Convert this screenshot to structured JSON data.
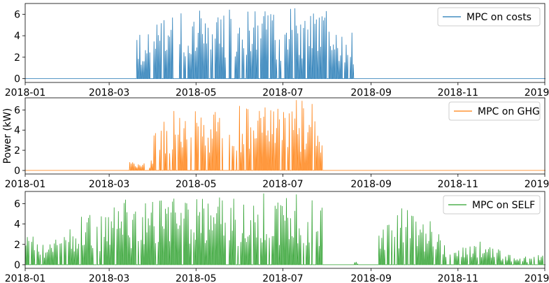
{
  "chart_data": [
    {
      "type": "line",
      "series": [
        {
          "name": "MPC on costs",
          "color": "#1f77b4"
        }
      ],
      "xlim": [
        "2018-01-01",
        "2019-01-01"
      ],
      "ylim": [
        -0.35,
        7
      ],
      "yticks": [
        0,
        2,
        4,
        6
      ],
      "xticks": [
        "2018-01",
        "2018-03",
        "2018-05",
        "2018-07",
        "2018-09",
        "2018-11",
        "2019-01"
      ],
      "ylabel": "",
      "legend": "top-right",
      "active_periods": [
        {
          "start": "2018-03-20",
          "end": "2018-04-01",
          "peak": 4.2
        },
        {
          "start": "2018-04-01",
          "end": "2018-04-15",
          "peak": 6.0
        },
        {
          "start": "2018-04-15",
          "end": "2018-05-15",
          "peak": 6.4
        },
        {
          "start": "2018-05-15",
          "end": "2018-07-15",
          "peak": 6.6
        },
        {
          "start": "2018-07-15",
          "end": "2018-08-01",
          "peak": 6.4
        },
        {
          "start": "2018-08-01",
          "end": "2018-08-15",
          "peak": 4.5
        },
        {
          "start": "2018-08-15",
          "end": "2018-08-20",
          "peak": 4.6
        }
      ]
    },
    {
      "type": "line",
      "series": [
        {
          "name": "MPC on GHG",
          "color": "#ff7f0e"
        }
      ],
      "xlim": [
        "2018-01-01",
        "2019-01-01"
      ],
      "ylim": [
        -0.35,
        7.2
      ],
      "yticks": [
        0,
        2,
        4,
        6
      ],
      "xticks": [
        "2018-01",
        "2018-03",
        "2018-05",
        "2018-07",
        "2018-09",
        "2018-11",
        "2019-01"
      ],
      "ylabel": "Power (kW)",
      "legend": "top-right",
      "active_periods": [
        {
          "start": "2018-03-15",
          "end": "2018-04-01",
          "peak": 1.0
        },
        {
          "start": "2018-04-01",
          "end": "2018-04-15",
          "peak": 5.0
        },
        {
          "start": "2018-04-15",
          "end": "2018-05-15",
          "peak": 6.0
        },
        {
          "start": "2018-05-15",
          "end": "2018-07-10",
          "peak": 6.4
        },
        {
          "start": "2018-07-10",
          "end": "2018-07-20",
          "peak": 7.0
        },
        {
          "start": "2018-07-20",
          "end": "2018-07-29",
          "peak": 6.6
        }
      ]
    },
    {
      "type": "line",
      "series": [
        {
          "name": "MPC on SELF",
          "color": "#2ca02c"
        }
      ],
      "xlim": [
        "2018-01-01",
        "2019-01-01"
      ],
      "ylim": [
        -0.35,
        7.2
      ],
      "yticks": [
        0,
        2,
        4,
        6
      ],
      "xticks": [
        "2018-01",
        "2018-03",
        "2018-05",
        "2018-07",
        "2018-09",
        "2018-11",
        "2019-01"
      ],
      "ylabel": "",
      "legend": "top-right",
      "active_periods": [
        {
          "start": "2018-01-01",
          "end": "2018-02-01",
          "peak": 2.8
        },
        {
          "start": "2018-02-01",
          "end": "2018-03-01",
          "peak": 5.0
        },
        {
          "start": "2018-03-01",
          "end": "2018-04-01",
          "peak": 6.5
        },
        {
          "start": "2018-04-01",
          "end": "2018-05-15",
          "peak": 6.6
        },
        {
          "start": "2018-05-15",
          "end": "2018-07-15",
          "peak": 7.0
        },
        {
          "start": "2018-07-15",
          "end": "2018-07-29",
          "peak": 6.8
        },
        {
          "start": "2018-08-20",
          "end": "2018-08-25",
          "peak": 0.3
        },
        {
          "start": "2018-09-05",
          "end": "2018-10-01",
          "peak": 5.7
        },
        {
          "start": "2018-10-01",
          "end": "2018-10-20",
          "peak": 4.4
        },
        {
          "start": "2018-10-20",
          "end": "2018-11-15",
          "peak": 2.0
        },
        {
          "start": "2018-11-15",
          "end": "2018-12-01",
          "peak": 2.6
        },
        {
          "start": "2018-12-01",
          "end": "2018-12-31",
          "peak": 1.0
        }
      ]
    }
  ]
}
